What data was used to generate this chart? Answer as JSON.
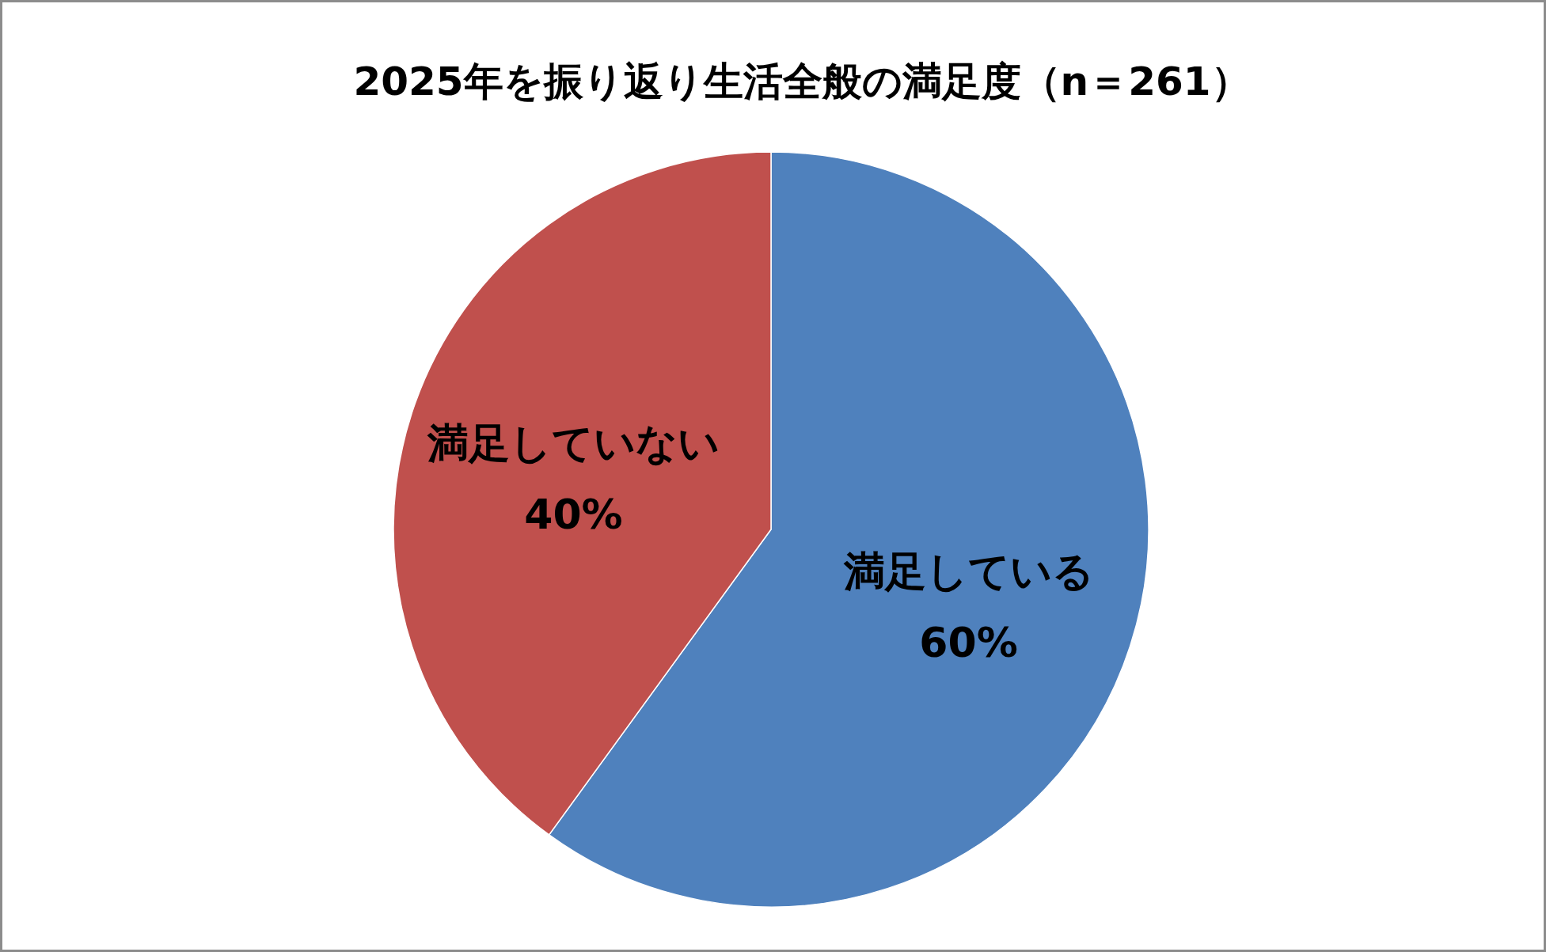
{
  "chart_data": {
    "type": "pie",
    "title": "2025年を振り返り生活全般の満足度（n＝261）",
    "categories": [
      "満足している",
      "満足していない"
    ],
    "values": [
      60,
      40
    ],
    "colors": [
      "#4f81bd",
      "#c0504d"
    ],
    "value_labels": [
      "60%",
      "40%"
    ]
  }
}
